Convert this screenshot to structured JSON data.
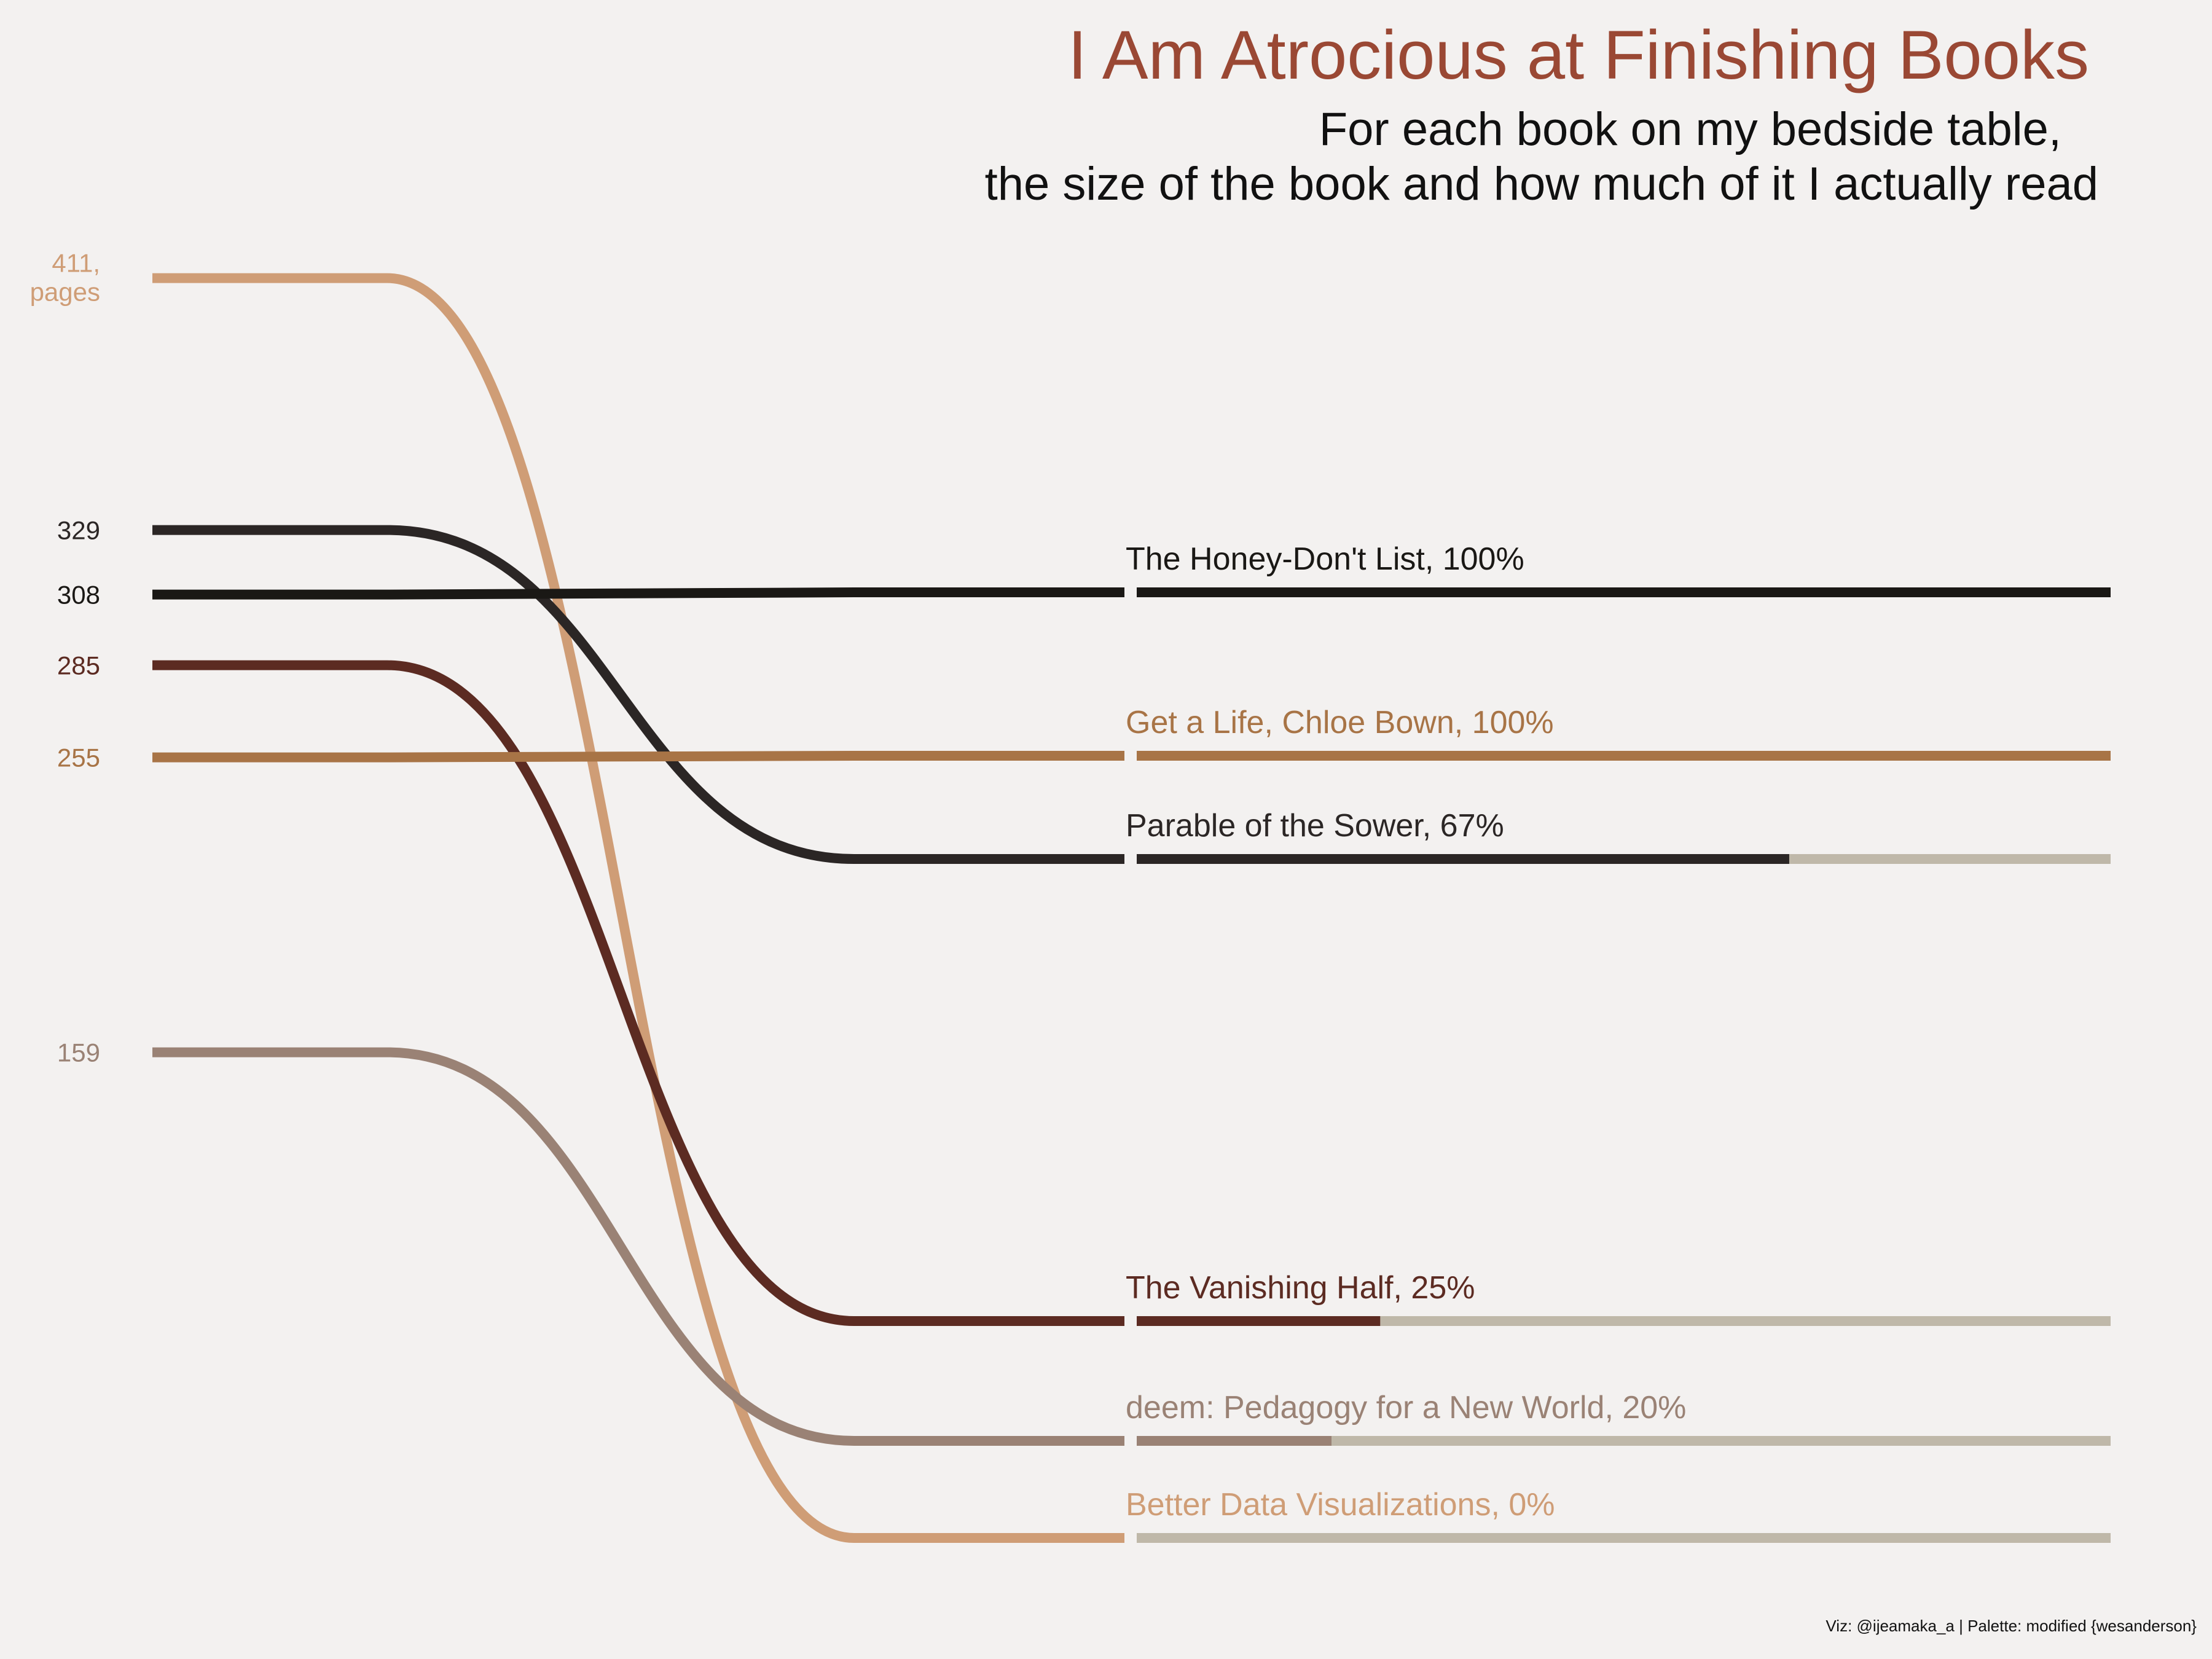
{
  "chart_data": {
    "type": "line",
    "title": "I Am Atrocious at Finishing Books",
    "subtitle_lines": [
      "For each book on my bedside table,",
      "the size of the book and how much of it I actually read"
    ],
    "caption": "Viz: @ijeamaka_a | Palette: modified {wesanderson}",
    "y_unit_label": "pages",
    "books": [
      {
        "title": "The Honey-Don't List",
        "pages": 308,
        "percent_read": 100,
        "label": "The Honey-Don't List, 100%",
        "color": "#1a1815"
      },
      {
        "title": "Get a Life, Chloe Bown",
        "pages": 255,
        "percent_read": 100,
        "label": "Get a Life, Chloe Bown, 100%",
        "color": "#a87446"
      },
      {
        "title": "Parable of the Sower",
        "pages": 329,
        "percent_read": 67,
        "label": "Parable of the Sower, 67%",
        "color": "#2b2625"
      },
      {
        "title": "The Vanishing Half",
        "pages": 285,
        "percent_read": 25,
        "label": "The Vanishing Half, 25%",
        "color": "#5c2b22"
      },
      {
        "title": "deem: Pedagogy for a New World",
        "pages": 159,
        "percent_read": 20,
        "label": "deem: Pedagogy for a New World, 20%",
        "color": "#9a8275"
      },
      {
        "title": "Better Data Visualizations",
        "pages": 411,
        "percent_read": 0,
        "label": "Better Data Visualizations, 0%",
        "color": "#cf9d76"
      }
    ],
    "unread_color": "#bfb8a9",
    "title_color": "#9a4834",
    "background": "#f3f1f0"
  }
}
